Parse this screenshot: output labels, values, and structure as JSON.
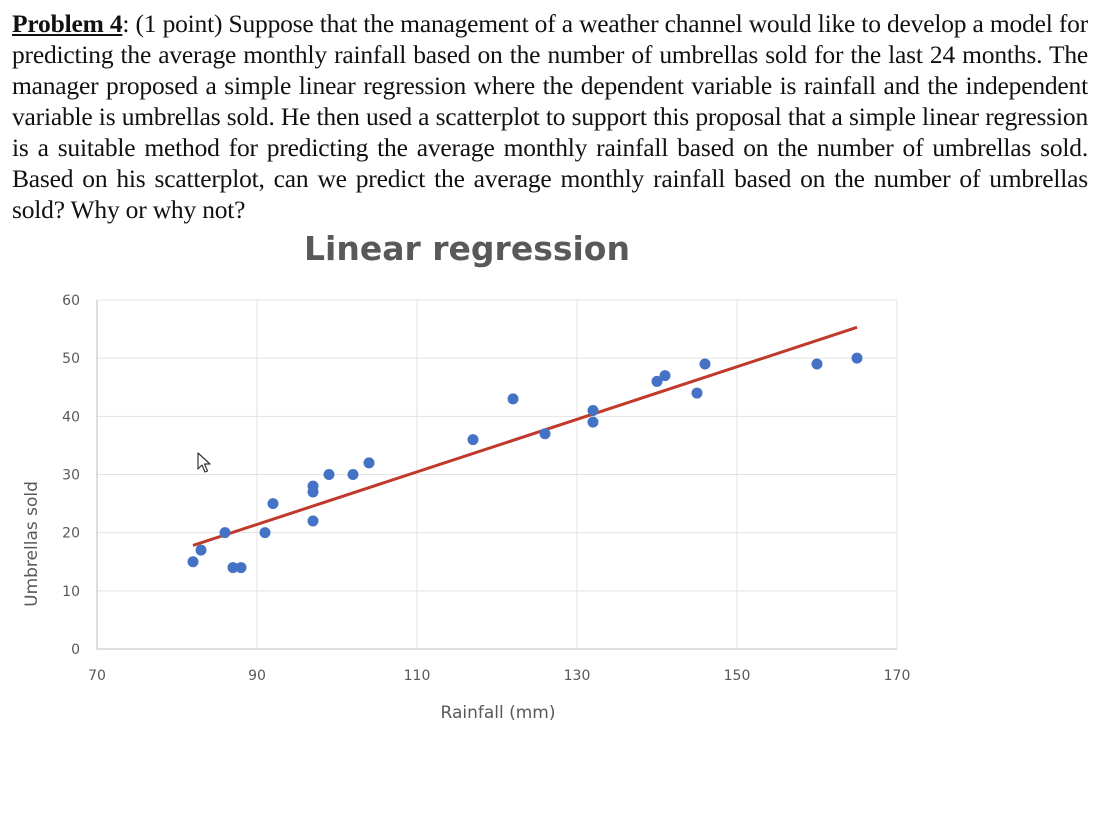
{
  "problem": {
    "label": "Problem 4",
    "points": "(1 point)",
    "text": " Suppose that the management of a weather channel would like to develop a model for predicting the average monthly rainfall based on the number of umbrellas sold for the last 24 months. The manager proposed a simple linear regression where the dependent variable is rainfall and the independent variable is umbrellas sold. He then used a scatterplot to support this proposal that a simple linear regression is a suitable method for predicting the average monthly rainfall based on the number of umbrellas sold. Based on his scatterplot, can we predict the average monthly rainfall based on the number of umbrellas sold? Why or why not?"
  },
  "chart_data": {
    "type": "scatter",
    "title": "Linear regression",
    "xlabel": "Rainfall (mm)",
    "ylabel": "Umbrellas sold",
    "xlim": [
      70,
      170
    ],
    "ylim": [
      0,
      60
    ],
    "x_ticks": [
      70,
      90,
      110,
      130,
      150,
      170
    ],
    "y_ticks": [
      0,
      10,
      20,
      30,
      40,
      50,
      60
    ],
    "grid": true,
    "legend": "none",
    "series": [
      {
        "color": "#4472C4",
        "points": [
          [
            82,
            15
          ],
          [
            83,
            17
          ],
          [
            86,
            20
          ],
          [
            87,
            14
          ],
          [
            88,
            14
          ],
          [
            91,
            20
          ],
          [
            92,
            25
          ],
          [
            97,
            22
          ],
          [
            97,
            27
          ],
          [
            97,
            28
          ],
          [
            99,
            30
          ],
          [
            102,
            30
          ],
          [
            104,
            32
          ],
          [
            117,
            36
          ],
          [
            122,
            43
          ],
          [
            126,
            37
          ],
          [
            132,
            39
          ],
          [
            132,
            41
          ],
          [
            140,
            46
          ],
          [
            141,
            47
          ],
          [
            145,
            44
          ],
          [
            146,
            49
          ],
          [
            160,
            49
          ],
          [
            165,
            50
          ]
        ]
      }
    ],
    "trendline": {
      "color": "#C0392B",
      "x": [
        82,
        165
      ],
      "y": [
        17.8,
        55.3
      ]
    }
  }
}
